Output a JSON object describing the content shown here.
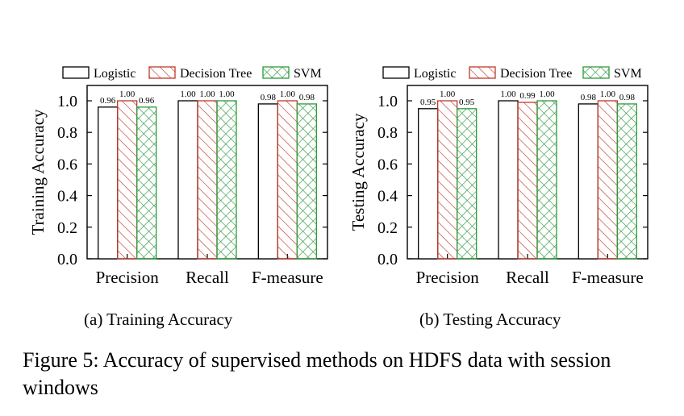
{
  "figure": {
    "caption": "Figure 5: Accuracy of supervised methods on HDFS data with session windows"
  },
  "colors": {
    "logistic": "#000000",
    "decision_tree": "#c0392b",
    "svm": "#2e9a3e"
  },
  "chart_data": [
    {
      "type": "bar",
      "subcaption": "(a) Training Accuracy",
      "ylabel": "Training Accuracy",
      "xlabel": "",
      "ylim": [
        0,
        1.0
      ],
      "yticks": [
        "0.0",
        "0.2",
        "0.4",
        "0.6",
        "0.8",
        "1.0"
      ],
      "categories": [
        "Precision",
        "Recall",
        "F-measure"
      ],
      "legend_position": "top",
      "series": [
        {
          "name": "Logistic",
          "values": [
            0.96,
            1.0,
            0.98
          ],
          "labels": [
            "0.96",
            "1.00",
            "0.98"
          ]
        },
        {
          "name": "Decision Tree",
          "values": [
            1.0,
            1.0,
            1.0
          ],
          "labels": [
            "1.00",
            "1.00",
            "1.00"
          ]
        },
        {
          "name": "SVM",
          "values": [
            0.96,
            1.0,
            0.98
          ],
          "labels": [
            "0.96",
            "1.00",
            "0.98"
          ]
        }
      ]
    },
    {
      "type": "bar",
      "subcaption": "(b) Testing Accuracy",
      "ylabel": "Testing Accuracy",
      "xlabel": "",
      "ylim": [
        0,
        1.0
      ],
      "yticks": [
        "0.0",
        "0.2",
        "0.4",
        "0.6",
        "0.8",
        "1.0"
      ],
      "categories": [
        "Precision",
        "Recall",
        "F-measure"
      ],
      "legend_position": "top",
      "series": [
        {
          "name": "Logistic",
          "values": [
            0.95,
            1.0,
            0.98
          ],
          "labels": [
            "0.95",
            "1.00",
            "0.98"
          ]
        },
        {
          "name": "Decision Tree",
          "values": [
            1.0,
            0.99,
            1.0
          ],
          "labels": [
            "1.00",
            "0.99",
            "1.00"
          ]
        },
        {
          "name": "SVM",
          "values": [
            0.95,
            1.0,
            0.98
          ],
          "labels": [
            "0.95",
            "1.00",
            "0.98"
          ]
        }
      ]
    }
  ]
}
